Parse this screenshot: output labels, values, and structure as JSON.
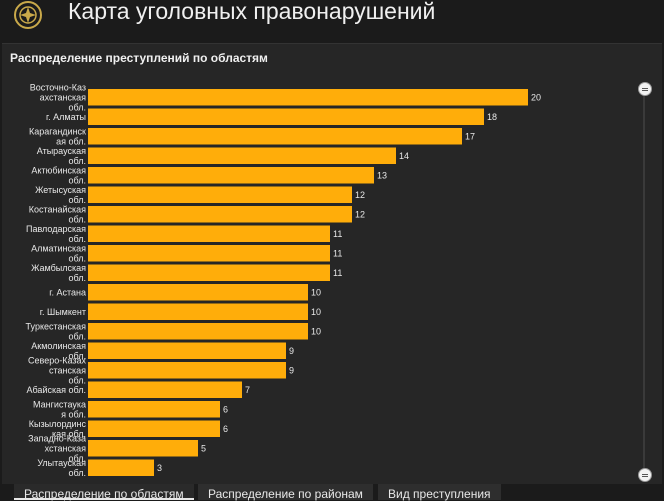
{
  "header": {
    "title": "Карта уголовных правонарушений",
    "logo_icon": "emblem-icon"
  },
  "panel": {
    "title": "Распределение преступлений по областям"
  },
  "colors": {
    "bar": "#ffad0a",
    "background": "#262626"
  },
  "tabs": [
    {
      "label": "Распределение по областям",
      "active": true
    },
    {
      "label": "Распределение по районам",
      "active": false
    },
    {
      "label": "Вид преступления",
      "active": false
    }
  ],
  "chart_data": {
    "type": "bar",
    "orientation": "horizontal",
    "categories": [
      [
        "Восточно-Каз",
        "ахстанская",
        "обл."
      ],
      [
        "г. Алматы"
      ],
      [
        "Карагандинск",
        "ая обл."
      ],
      [
        "Атырауская",
        "обл."
      ],
      [
        "Актюбинская",
        "обл."
      ],
      [
        "Жетысуская",
        "обл."
      ],
      [
        "Костанайская",
        "обл."
      ],
      [
        "Павлодарская",
        "обл."
      ],
      [
        "Алматинская",
        "обл."
      ],
      [
        "Жамбылская",
        "обл."
      ],
      [
        "г. Астана"
      ],
      [
        "г. Шымкент"
      ],
      [
        "Туркестанская",
        "обл."
      ],
      [
        "Акмолинская",
        "обл."
      ],
      [
        "Северо-Казах",
        "станская",
        "обл."
      ],
      [
        "Абайская обл."
      ],
      [
        "Мангистаука",
        "я обл."
      ],
      [
        "Кызылординс",
        "кая обл."
      ],
      [
        "Западно-Каза",
        "хстанская",
        "обл."
      ],
      [
        "Улытауская",
        "обл."
      ]
    ],
    "values": [
      20,
      18,
      17,
      14,
      13,
      12,
      12,
      11,
      11,
      11,
      10,
      10,
      10,
      9,
      9,
      7,
      6,
      6,
      5,
      3
    ],
    "xlim": [
      0,
      20
    ]
  }
}
